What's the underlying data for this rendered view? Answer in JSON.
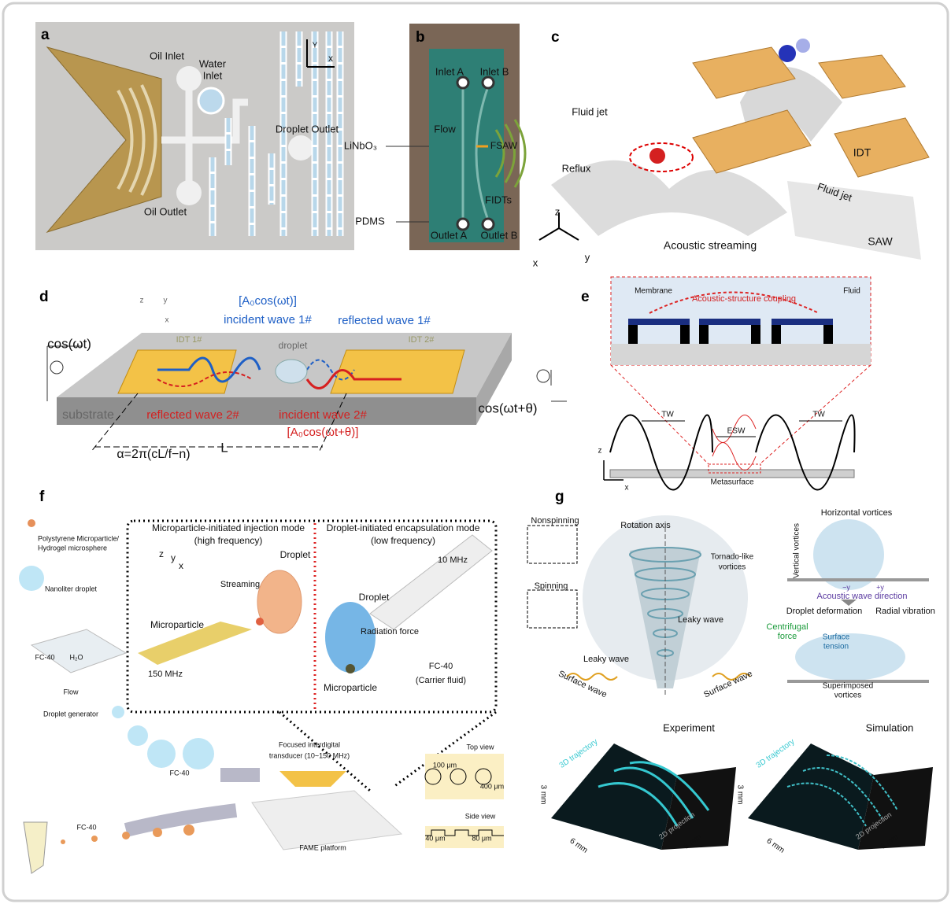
{
  "panels": [
    {
      "label": "a",
      "texts": [
        "Oil Inlet",
        "Water",
        "Inlet",
        "Droplet Outlet",
        "Oil Outlet",
        "Y",
        "x"
      ]
    },
    {
      "label": "b",
      "texts": [
        "Inlet A",
        "Inlet B",
        "Flow",
        "FSAW",
        "LiNbO₃",
        "FIDTs",
        "PDMS",
        "Outlet A",
        "Outlet B"
      ]
    },
    {
      "label": "c",
      "texts": [
        "Fluid jet",
        "Reflux",
        "IDT",
        "Fluid jet",
        "z",
        "x",
        "y",
        "Acoustic streaming",
        "SAW"
      ]
    },
    {
      "label": "d",
      "texts": [
        "[A₀cos(ωt)]",
        "incident wave 1#",
        "reflected wave 1#",
        "droplet",
        "cos(ωt)",
        "IDT 1#",
        "IDT 2#",
        "substrate",
        "reflected wave 2#",
        "incident wave 2#",
        "cos(ωt+θ)",
        "[A₀cos(ωt+θ)]",
        "α=2π(cL/f−n)",
        "L",
        "z",
        "y",
        "x"
      ]
    },
    {
      "label": "e",
      "texts": [
        "Membrane",
        "Acoustic-structure coupling",
        "Fluid",
        "TW",
        "ESW",
        "TW",
        "z",
        "x",
        "Metasurface"
      ]
    },
    {
      "label": "f",
      "texts": [
        "Microparticle-initiated injection mode",
        "(high frequency)",
        "Droplet-initiated encapsulation mode",
        "(low frequency)",
        "Polystyrene Microparticle/",
        "Hydrogel microsphere",
        "Nanoliter droplet",
        "Droplet",
        "Streaming",
        "Microparticle",
        "150 MHz",
        "10 MHz",
        "Droplet",
        "Radiation force",
        "FC-40",
        "(Carrier fluid)",
        "Microparticle",
        "FC-40",
        "H₂O",
        "Flow",
        "Droplet generator",
        "Focused interdigital",
        "transducer (10~150 MHz)",
        "FC-40",
        "FC-40",
        "FAME platform",
        "Top view",
        "100 μm",
        "400 μm",
        "Side view",
        "40 μm",
        "80 μm",
        "z",
        "y",
        "x"
      ]
    },
    {
      "label": "g",
      "texts": [
        "Nonspinning",
        "Rotation axis",
        "Spinning",
        "Tornado-like",
        "vortices",
        "Leaky wave",
        "Leaky wave",
        "Surface wave",
        "Surface wave",
        "Horizontal vortices",
        "Vertical vortices",
        "−y",
        "+y",
        "Acoustic wave direction",
        "Droplet deformation",
        "Radial vibration",
        "Centrifugal",
        "force",
        "Surface",
        "tension",
        "Superimposed",
        "vortices",
        "Experiment",
        "Simulation",
        "3D trajectory",
        "3 mm",
        "6 mm",
        "6 mm",
        "2D projection",
        "3D trajectory",
        "3 mm",
        "6 mm",
        "6 mm",
        "2D projection"
      ]
    }
  ]
}
